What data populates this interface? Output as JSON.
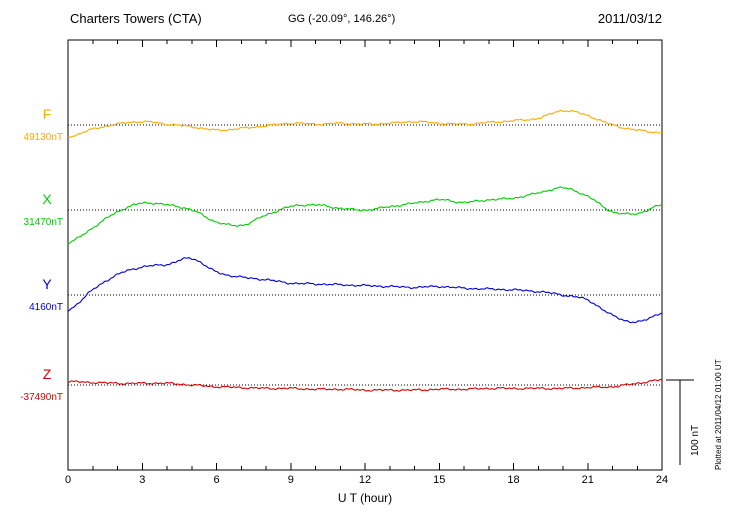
{
  "header": {
    "station": "Charters Towers (CTA)",
    "coords": "GG (-20.09°, 146.26°)",
    "date": "2011/03/12"
  },
  "side_note": "Plotted at 2011/04/12 01:00 UT",
  "scale_bar": {
    "label": "100 nT",
    "span_nT": 100
  },
  "axis": {
    "xlabel": "U T (hour)",
    "xmin": 0,
    "xmax": 24,
    "tick_values": [
      0,
      3,
      6,
      9,
      12,
      15,
      18,
      21,
      24
    ],
    "tick_labels": [
      "0",
      "3",
      "6",
      "9",
      "12",
      "15",
      "18",
      "21",
      "24"
    ]
  },
  "chart_data": {
    "type": "line",
    "title": "Charters Towers (CTA) magnetogram 2011/03/12",
    "x_unit": "UT hour",
    "x_range": [
      0,
      24
    ],
    "sample_interval_hours": 1,
    "grid": "dotted horizontal baseline per component",
    "scale": {
      "nT": 100,
      "px": 85
    },
    "series": [
      {
        "name": "F",
        "baseline_label": "49130nT",
        "color": "#ffaa00",
        "values_nT_offset": [
          -14,
          -5,
          1,
          4,
          1,
          -2,
          -6,
          -4,
          -1,
          2,
          1,
          2,
          1,
          2,
          4,
          2,
          1,
          3,
          5,
          8,
          17,
          11,
          0,
          -6,
          -9
        ]
      },
      {
        "name": "X",
        "baseline_label": "31470nT",
        "color": "#00cc00",
        "values_nT_offset": [
          -39,
          -21,
          -2,
          8,
          6,
          0,
          -14,
          -18,
          -6,
          4,
          6,
          2,
          0,
          4,
          8,
          12,
          9,
          12,
          14,
          20,
          26,
          16,
          -2,
          -4,
          6
        ]
      },
      {
        "name": "Y",
        "baseline_label": "4160nT",
        "color": "#0000dd",
        "values_nT_offset": [
          -18,
          6,
          24,
          33,
          36,
          43,
          27,
          21,
          18,
          14,
          13,
          12,
          11,
          10,
          9,
          10,
          8,
          7,
          6,
          4,
          0,
          -6,
          -24,
          -32,
          -21
        ]
      },
      {
        "name": "Z",
        "baseline_label": "-37490nT",
        "color": "#dd0000",
        "values_nT_offset": [
          4,
          3,
          2,
          2,
          2,
          0,
          -2,
          -3,
          -4,
          -4,
          -5,
          -5,
          -6,
          -6,
          -6,
          -5,
          -5,
          -4,
          -4,
          -4,
          -4,
          -3,
          -2,
          2,
          6
        ]
      }
    ]
  }
}
